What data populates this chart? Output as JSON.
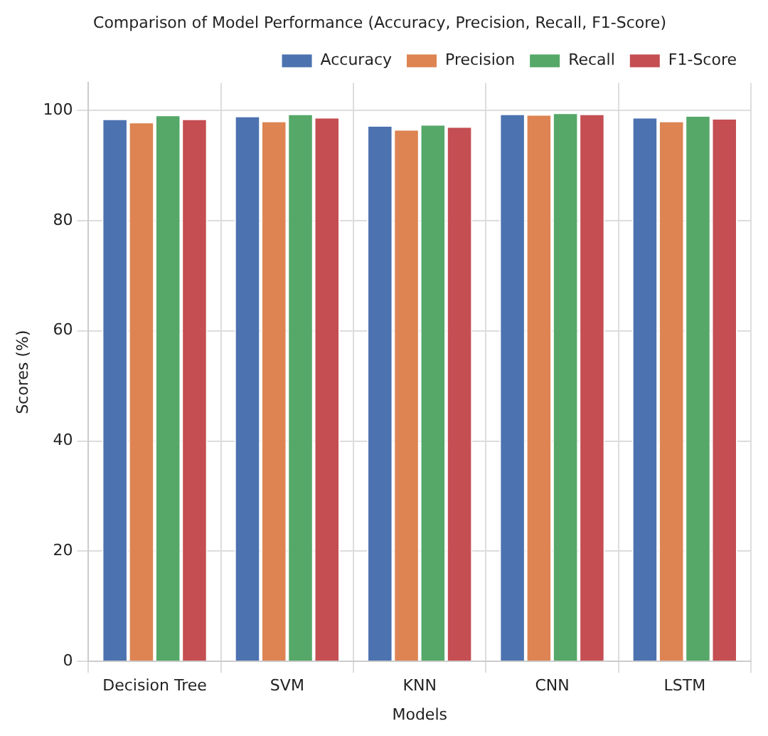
{
  "chart_data": {
    "type": "bar",
    "title": "Comparison of Model Performance (Accuracy, Precision, Recall, F1-Score)",
    "xlabel": "Models",
    "ylabel": "Scores (%)",
    "categories": [
      "Decision Tree",
      "SVM",
      "KNN",
      "CNN",
      "LSTM"
    ],
    "series": [
      {
        "name": "Accuracy",
        "color": "#4c72b0",
        "values": [
          98.5,
          99.0,
          97.3,
          99.4,
          98.8
        ]
      },
      {
        "name": "Precision",
        "color": "#dd8452",
        "values": [
          97.9,
          98.1,
          96.6,
          99.3,
          98.1
        ]
      },
      {
        "name": "Recall",
        "color": "#55a868",
        "values": [
          99.2,
          99.4,
          97.5,
          99.6,
          99.1
        ]
      },
      {
        "name": "F1-Score",
        "color": "#c44e52",
        "values": [
          98.5,
          98.8,
          97.1,
          99.4,
          98.6
        ]
      }
    ],
    "ylim": [
      0,
      105
    ],
    "yticks": [
      0,
      20,
      40,
      60,
      80,
      100
    ],
    "grid": true,
    "legend": "top right"
  }
}
